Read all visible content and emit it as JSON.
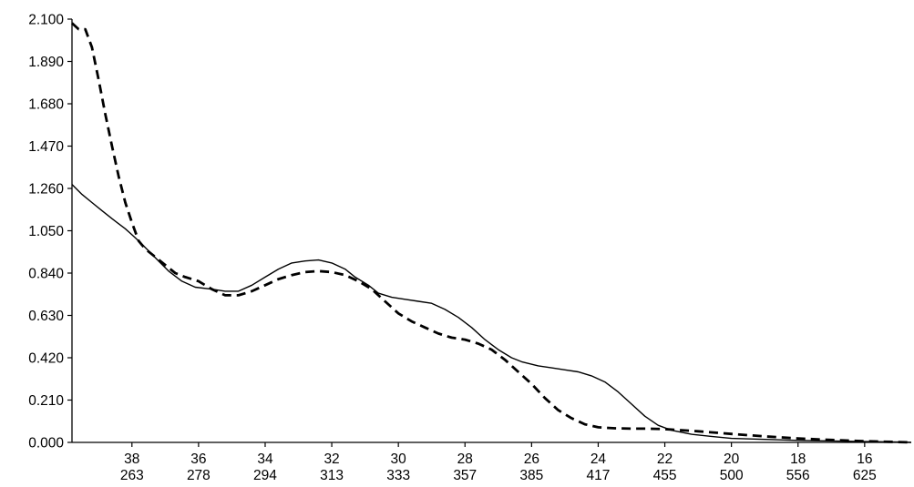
{
  "chart_data": {
    "type": "line",
    "title": "",
    "xlabel": "",
    "ylabel": "",
    "x_axis": {
      "reversed": true,
      "range": [
        39.8,
        14.6
      ],
      "ticks": [
        {
          "value": 38,
          "label": "38",
          "label2": "263"
        },
        {
          "value": 36,
          "label": "36",
          "label2": "278"
        },
        {
          "value": 34,
          "label": "34",
          "label2": "294"
        },
        {
          "value": 32,
          "label": "32",
          "label2": "313"
        },
        {
          "value": 30,
          "label": "30",
          "label2": "333"
        },
        {
          "value": 28,
          "label": "28",
          "label2": "357"
        },
        {
          "value": 26,
          "label": "26",
          "label2": "385"
        },
        {
          "value": 24,
          "label": "24",
          "label2": "417"
        },
        {
          "value": 22,
          "label": "22",
          "label2": "455"
        },
        {
          "value": 20,
          "label": "20",
          "label2": "500"
        },
        {
          "value": 18,
          "label": "18",
          "label2": "556"
        },
        {
          "value": 16,
          "label": "16",
          "label2": "625"
        }
      ]
    },
    "y_axis": {
      "range": [
        0,
        2.1
      ],
      "ticks": [
        {
          "value": 0.0,
          "label": "0.000"
        },
        {
          "value": 0.21,
          "label": "0.210"
        },
        {
          "value": 0.42,
          "label": "0.420"
        },
        {
          "value": 0.63,
          "label": "0.630"
        },
        {
          "value": 0.84,
          "label": "0.840"
        },
        {
          "value": 1.05,
          "label": "1.050"
        },
        {
          "value": 1.26,
          "label": "1.260"
        },
        {
          "value": 1.47,
          "label": "1.470"
        },
        {
          "value": 1.68,
          "label": "1.680"
        },
        {
          "value": 1.89,
          "label": "1.890"
        },
        {
          "value": 2.1,
          "label": "2.100"
        }
      ]
    },
    "grid": false,
    "legend": "none",
    "series": [
      {
        "style": "solid",
        "color": "#000000",
        "points": [
          [
            39.8,
            1.28
          ],
          [
            39.5,
            1.23
          ],
          [
            39.2,
            1.19
          ],
          [
            38.9,
            1.15
          ],
          [
            38.6,
            1.11
          ],
          [
            38.2,
            1.06
          ],
          [
            38.0,
            1.03
          ],
          [
            37.8,
            1.0
          ],
          [
            37.5,
            0.95
          ],
          [
            37.2,
            0.9
          ],
          [
            36.9,
            0.85
          ],
          [
            36.5,
            0.8
          ],
          [
            36.1,
            0.77
          ],
          [
            35.6,
            0.76
          ],
          [
            35.2,
            0.75
          ],
          [
            34.8,
            0.75
          ],
          [
            34.4,
            0.78
          ],
          [
            34.0,
            0.82
          ],
          [
            33.6,
            0.86
          ],
          [
            33.2,
            0.89
          ],
          [
            32.8,
            0.9
          ],
          [
            32.4,
            0.905
          ],
          [
            32.0,
            0.89
          ],
          [
            31.6,
            0.86
          ],
          [
            31.3,
            0.82
          ],
          [
            30.9,
            0.78
          ],
          [
            30.6,
            0.74
          ],
          [
            30.2,
            0.72
          ],
          [
            29.8,
            0.71
          ],
          [
            29.4,
            0.7
          ],
          [
            29.0,
            0.69
          ],
          [
            28.6,
            0.66
          ],
          [
            28.2,
            0.62
          ],
          [
            27.8,
            0.57
          ],
          [
            27.4,
            0.51
          ],
          [
            27.0,
            0.46
          ],
          [
            26.6,
            0.42
          ],
          [
            26.3,
            0.4
          ],
          [
            25.8,
            0.38
          ],
          [
            25.4,
            0.37
          ],
          [
            25.0,
            0.36
          ],
          [
            24.6,
            0.35
          ],
          [
            24.2,
            0.33
          ],
          [
            23.8,
            0.3
          ],
          [
            23.4,
            0.25
          ],
          [
            23.0,
            0.19
          ],
          [
            22.6,
            0.13
          ],
          [
            22.2,
            0.085
          ],
          [
            21.8,
            0.06
          ],
          [
            21.2,
            0.04
          ],
          [
            20.6,
            0.03
          ],
          [
            20.0,
            0.02
          ],
          [
            19.0,
            0.015
          ],
          [
            18.0,
            0.01
          ],
          [
            17.0,
            0.007
          ],
          [
            16.0,
            0.004
          ],
          [
            15.0,
            0.002
          ],
          [
            14.6,
            0.0
          ]
        ]
      },
      {
        "style": "dashed",
        "color": "#000000",
        "points": [
          [
            39.8,
            2.08
          ],
          [
            39.6,
            2.05
          ],
          [
            39.4,
            2.05
          ],
          [
            39.2,
            1.96
          ],
          [
            39.0,
            1.8
          ],
          [
            38.8,
            1.63
          ],
          [
            38.6,
            1.47
          ],
          [
            38.4,
            1.32
          ],
          [
            38.2,
            1.19
          ],
          [
            38.0,
            1.09
          ],
          [
            37.8,
            1.0
          ],
          [
            37.6,
            0.96
          ],
          [
            37.3,
            0.92
          ],
          [
            37.0,
            0.88
          ],
          [
            36.7,
            0.84
          ],
          [
            36.4,
            0.82
          ],
          [
            36.0,
            0.8
          ],
          [
            35.6,
            0.76
          ],
          [
            35.2,
            0.73
          ],
          [
            34.8,
            0.73
          ],
          [
            34.4,
            0.75
          ],
          [
            34.0,
            0.78
          ],
          [
            33.6,
            0.81
          ],
          [
            33.2,
            0.83
          ],
          [
            32.8,
            0.845
          ],
          [
            32.4,
            0.85
          ],
          [
            32.0,
            0.845
          ],
          [
            31.6,
            0.83
          ],
          [
            31.2,
            0.8
          ],
          [
            30.8,
            0.76
          ],
          [
            30.4,
            0.7
          ],
          [
            30.0,
            0.64
          ],
          [
            29.6,
            0.6
          ],
          [
            29.2,
            0.57
          ],
          [
            28.8,
            0.54
          ],
          [
            28.4,
            0.52
          ],
          [
            28.0,
            0.51
          ],
          [
            27.6,
            0.49
          ],
          [
            27.2,
            0.46
          ],
          [
            26.8,
            0.41
          ],
          [
            26.4,
            0.35
          ],
          [
            26.0,
            0.29
          ],
          [
            25.6,
            0.22
          ],
          [
            25.2,
            0.16
          ],
          [
            24.8,
            0.12
          ],
          [
            24.4,
            0.09
          ],
          [
            24.0,
            0.075
          ],
          [
            23.5,
            0.07
          ],
          [
            23.0,
            0.068
          ],
          [
            22.5,
            0.068
          ],
          [
            22.0,
            0.066
          ],
          [
            21.0,
            0.055
          ],
          [
            20.0,
            0.042
          ],
          [
            19.0,
            0.03
          ],
          [
            18.0,
            0.02
          ],
          [
            17.0,
            0.012
          ],
          [
            16.0,
            0.006
          ],
          [
            15.0,
            0.002
          ],
          [
            14.6,
            0.0
          ]
        ]
      }
    ]
  }
}
